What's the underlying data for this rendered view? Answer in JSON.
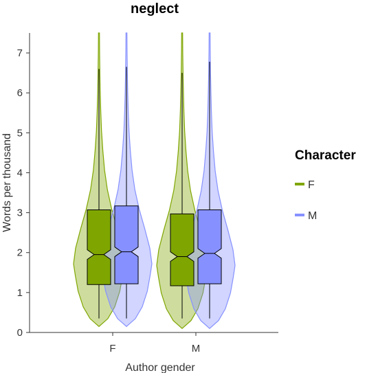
{
  "chart_data": {
    "type": "violin",
    "title": "neglect",
    "xlabel": "Author gender",
    "ylabel": "Words per thousand",
    "categories": [
      "F",
      "M"
    ],
    "ylim": [
      0,
      7.5
    ],
    "yticks": [
      0,
      1,
      2,
      3,
      4,
      5,
      6,
      7
    ],
    "legend": {
      "title": "Character",
      "placement": "right",
      "entries": [
        {
          "label": "F",
          "color": "#7fa600"
        },
        {
          "label": "M",
          "color": "#8691ff"
        }
      ]
    },
    "series": [
      {
        "name": "F",
        "color": "#7fa600",
        "box": [
          {
            "category": "F",
            "whisker_low": 0.35,
            "q1": 1.2,
            "median": 1.95,
            "q3": 3.07,
            "whisker_high": 6.6,
            "notch_low": 1.83,
            "notch_high": 2.07
          },
          {
            "category": "M",
            "whisker_low": 0.35,
            "q1": 1.17,
            "median": 1.9,
            "q3": 2.97,
            "whisker_high": 6.5,
            "notch_low": 1.78,
            "notch_high": 2.02
          }
        ],
        "violin_min": [
          0.15,
          0.1
        ],
        "violin_max": [
          7.5,
          7.5
        ]
      },
      {
        "name": "M",
        "color": "#8691ff",
        "box": [
          {
            "category": "F",
            "whisker_low": 0.35,
            "q1": 1.22,
            "median": 2.02,
            "q3": 3.17,
            "whisker_high": 6.65,
            "notch_low": 1.9,
            "notch_high": 2.14
          },
          {
            "category": "M",
            "whisker_low": 0.35,
            "q1": 1.22,
            "median": 1.98,
            "q3": 3.07,
            "whisker_high": 6.78,
            "notch_low": 1.86,
            "notch_high": 2.1
          }
        ],
        "violin_min": [
          0.15,
          0.1
        ],
        "violin_max": [
          7.5,
          7.5
        ]
      }
    ]
  }
}
